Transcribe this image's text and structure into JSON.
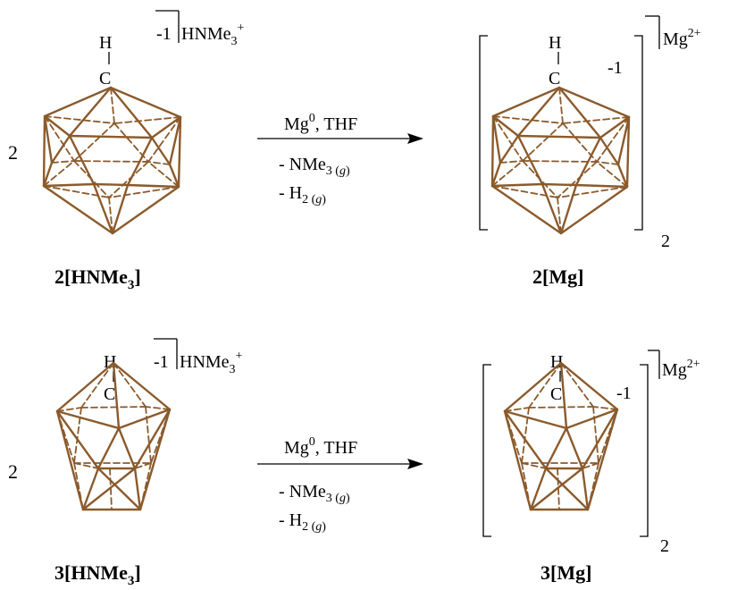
{
  "reactions": [
    {
      "reactant": {
        "coefficient": "2",
        "h_label": "H",
        "c_label": "C",
        "charge": "-1",
        "cation_base": "HNMe",
        "cation_sub": "3",
        "cation_sup": "+",
        "label_pre": "2[HNMe",
        "label_sub": "3",
        "label_post": "]"
      },
      "conditions": {
        "reagent_base": "Mg",
        "reagent_sup": "0",
        "reagent_post": ", THF",
        "byproduct1_base": "- NMe",
        "byproduct1_sub": "3 (",
        "byproduct1_phase": "g",
        "byproduct1_close": ")",
        "byproduct2_base": "- H",
        "byproduct2_sub": "2 (",
        "byproduct2_phase": "g",
        "byproduct2_close": ")"
      },
      "product": {
        "h_label": "H",
        "c_label": "C",
        "charge": "-1",
        "bracket_subscript": "2",
        "cation_base": "Mg",
        "cation_sup": "2+",
        "label": "2[Mg]"
      }
    },
    {
      "reactant": {
        "coefficient": "2",
        "h_label": "H",
        "c_label": "C",
        "charge": "-1",
        "cation_base": "HNMe",
        "cation_sub": "3",
        "cation_sup": "+",
        "label_pre": "3[HNMe",
        "label_sub": "3",
        "label_post": "]"
      },
      "conditions": {
        "reagent_base": "Mg",
        "reagent_sup": "0",
        "reagent_post": ", THF",
        "byproduct1_base": "- NMe",
        "byproduct1_sub": "3 (",
        "byproduct1_phase": "g",
        "byproduct1_close": ")",
        "byproduct2_base": "- H",
        "byproduct2_sub": "2 (",
        "byproduct2_phase": "g",
        "byproduct2_close": ")"
      },
      "product": {
        "h_label": "H",
        "c_label": "C",
        "charge": "-1",
        "bracket_subscript": "2",
        "cation_base": "Mg",
        "cation_sup": "2+",
        "label": "3[Mg]"
      }
    }
  ],
  "colors": {
    "cage_bond": "#8B5A2B",
    "text": "#000000"
  }
}
